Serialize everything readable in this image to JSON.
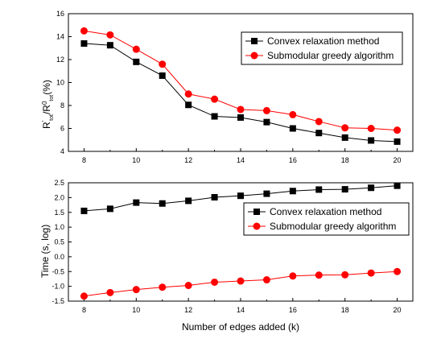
{
  "chart_data": [
    {
      "type": "line",
      "ylabel_parts": {
        "r": "R",
        "sup1": "′",
        "sub1": "tot",
        "slash": "/R",
        "sup2": "0",
        "sub2": "tot",
        "unit": "(%)"
      },
      "x": [
        8,
        9,
        10,
        11,
        12,
        13,
        14,
        15,
        16,
        17,
        18,
        19,
        20
      ],
      "xlim": [
        7.4,
        20.6
      ],
      "ylim": [
        4,
        16
      ],
      "xticks": [
        8,
        10,
        12,
        14,
        16,
        18,
        20
      ],
      "yticks": [
        4,
        6,
        8,
        10,
        12,
        14,
        16
      ],
      "legend_position": "top-right",
      "series": [
        {
          "name": "Convex relaxation method",
          "color": "#000000",
          "marker": "square",
          "values": [
            13.4,
            13.25,
            11.8,
            10.6,
            8.05,
            7.05,
            6.95,
            6.55,
            6.0,
            5.6,
            5.2,
            4.95,
            4.85
          ]
        },
        {
          "name": "Submodular greedy algorithm",
          "color": "#ff0000",
          "marker": "circle",
          "values": [
            14.5,
            14.15,
            12.9,
            11.6,
            9.0,
            8.55,
            7.65,
            7.55,
            7.2,
            6.6,
            6.05,
            6.0,
            5.85
          ]
        }
      ]
    },
    {
      "type": "line",
      "ylabel": "Time (s, log)",
      "xlabel": "Number of edges added (k)",
      "x": [
        8,
        9,
        10,
        11,
        12,
        13,
        14,
        15,
        16,
        17,
        18,
        19,
        20
      ],
      "xlim": [
        7.4,
        20.6
      ],
      "ylim": [
        -1.5,
        2.5
      ],
      "xticks": [
        8,
        10,
        12,
        14,
        16,
        18,
        20
      ],
      "yticks": [
        -1.5,
        -1.0,
        -0.5,
        0.0,
        0.5,
        1.0,
        1.5,
        2.0,
        2.5
      ],
      "ytick_labels": [
        "-1.5",
        "-1.0",
        "-0.5",
        "0.0",
        "0.5",
        "1.0",
        "1.5",
        "2.0",
        "2.5"
      ],
      "legend_position": "upper-right",
      "series": [
        {
          "name": "Convex relaxation method",
          "color": "#000000",
          "marker": "square",
          "values": [
            1.55,
            1.62,
            1.83,
            1.8,
            1.89,
            2.01,
            2.06,
            2.13,
            2.22,
            2.27,
            2.28,
            2.33,
            2.4
          ]
        },
        {
          "name": "Submodular greedy algorithm",
          "color": "#ff0000",
          "marker": "circle",
          "values": [
            -1.33,
            -1.21,
            -1.11,
            -1.03,
            -0.97,
            -0.86,
            -0.82,
            -0.78,
            -0.65,
            -0.62,
            -0.61,
            -0.55,
            -0.5
          ]
        }
      ]
    }
  ]
}
